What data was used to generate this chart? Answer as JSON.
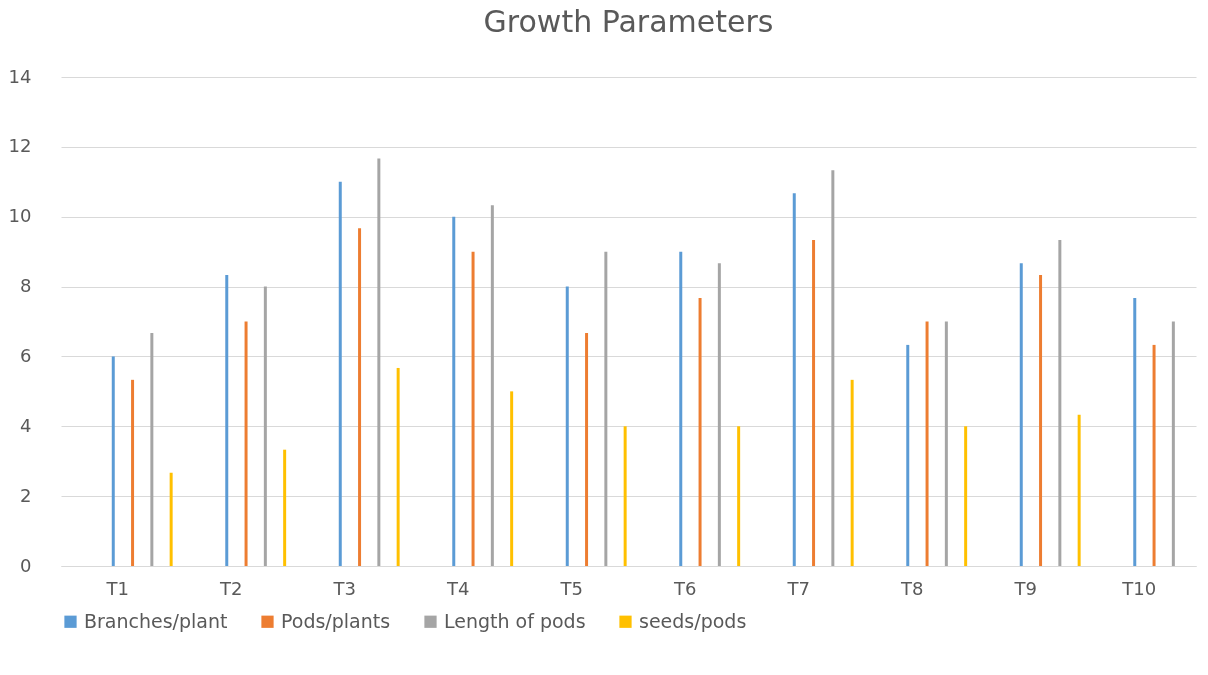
{
  "chart_data": {
    "type": "bar",
    "title": "Growth Parameters",
    "categories": [
      "T1",
      "T2",
      "T3",
      "T4",
      "T5",
      "T6",
      "T7",
      "T8",
      "T9",
      "T10"
    ],
    "series": [
      {
        "name": "Branches/plant",
        "color": "#5b9bd5",
        "values": [
          6,
          8.33,
          11,
          10,
          8,
          9,
          10.67,
          6.33,
          8.67,
          7.67
        ]
      },
      {
        "name": "Pods/plants",
        "color": "#ed7d31",
        "values": [
          5.33,
          7,
          9.67,
          9,
          6.67,
          7.67,
          9.33,
          7,
          8.33,
          6.33
        ]
      },
      {
        "name": "Length of pods",
        "color": "#a5a5a5",
        "values": [
          6.67,
          8,
          11.67,
          10.33,
          9,
          8.67,
          11.33,
          7,
          9.33,
          7
        ]
      },
      {
        "name": "seeds/pods",
        "color": "#ffc000",
        "values": [
          2.67,
          3.33,
          5.67,
          5,
          4,
          4,
          5.33,
          4,
          4.33,
          null
        ]
      }
    ],
    "ylim": [
      0,
      14
    ],
    "yticks": [
      0,
      2,
      4,
      6,
      8,
      10,
      12,
      14
    ],
    "grid": "y",
    "legend": "bottom"
  }
}
